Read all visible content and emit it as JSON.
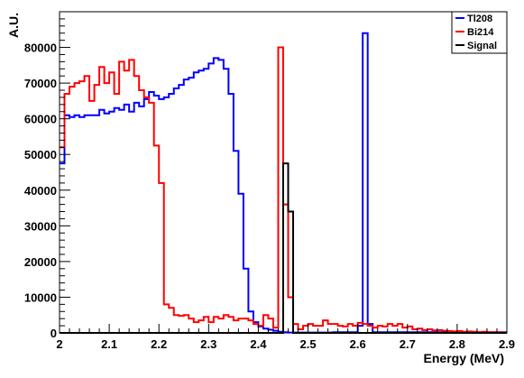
{
  "chart_data": {
    "type": "line",
    "xlabel": "Energy (MeV)",
    "ylabel": "A.U.",
    "xlim": [
      2.0,
      2.9
    ],
    "ylim": [
      0,
      90000
    ],
    "x_ticks": [
      "2",
      "2.1",
      "2.2",
      "2.3",
      "2.4",
      "2.5",
      "2.6",
      "2.7",
      "2.8",
      "2.9"
    ],
    "y_ticks": [
      "0",
      "10000",
      "20000",
      "30000",
      "40000",
      "50000",
      "60000",
      "70000",
      "80000"
    ],
    "legend_position": "top-right",
    "grid": false,
    "bin_edges_start": 2.0,
    "bin_width": 0.01,
    "series": [
      {
        "name": "Tl208",
        "color": "#0000ff",
        "values": [
          47500,
          61000,
          60500,
          61000,
          60500,
          61000,
          61000,
          61000,
          62500,
          61500,
          62000,
          63000,
          62500,
          64000,
          62000,
          64500,
          63500,
          65500,
          67500,
          66500,
          65500,
          66000,
          67000,
          68500,
          69500,
          71000,
          71500,
          73000,
          73500,
          74000,
          75500,
          77000,
          76500,
          74000,
          67000,
          51000,
          39000,
          18000,
          6000,
          3000,
          1800,
          1200,
          900,
          600,
          300,
          200,
          100,
          100,
          100,
          100,
          100,
          100,
          100,
          100,
          100,
          200,
          200,
          200,
          200,
          200,
          200,
          200,
          200,
          200,
          200,
          200,
          200,
          200,
          200,
          200,
          200,
          200,
          200,
          200,
          200,
          200,
          200,
          200,
          200,
          200,
          200,
          200,
          200,
          200,
          200,
          200,
          200,
          200,
          200,
          200,
          200,
          200,
          200,
          200,
          200,
          200,
          200,
          200,
          200,
          200
        ]
      },
      {
        "name": "Bi214",
        "color": "#ff0000",
        "values": [
          52000,
          67000,
          69000,
          70000,
          70500,
          72000,
          65000,
          69500,
          74500,
          70000,
          73000,
          67000,
          76000,
          73500,
          76500,
          72000,
          68000,
          66000,
          64500,
          52500,
          42000,
          8000,
          7000,
          5000,
          4800,
          5000,
          4000,
          3000,
          3500,
          4500,
          3000,
          4500,
          4000,
          5000,
          4500,
          3500,
          4000,
          4000,
          3500,
          2500,
          2000,
          5000,
          4000,
          1500,
          80000,
          36000,
          10000,
          2500,
          1000,
          2000,
          2500,
          2000,
          2000,
          3500,
          2500,
          2500,
          2000,
          1800,
          2500,
          2000,
          2800,
          2500,
          2000,
          1500,
          2000,
          1800,
          2500,
          2000,
          2500,
          1500,
          1800,
          1000,
          1200,
          800,
          1000,
          700,
          800,
          600,
          500,
          400,
          500,
          300,
          400,
          300,
          200,
          300,
          200,
          200,
          200,
          100
        ]
      },
      {
        "name": "Signal",
        "color": "#000000",
        "values": [
          0,
          0,
          0,
          0,
          0,
          0,
          0,
          0,
          0,
          0,
          0,
          0,
          0,
          0,
          0,
          0,
          0,
          0,
          0,
          0,
          0,
          0,
          0,
          0,
          0,
          0,
          0,
          0,
          0,
          0,
          0,
          0,
          0,
          0,
          0,
          0,
          0,
          0,
          0,
          0,
          0,
          0,
          0,
          0,
          0,
          47500,
          34000,
          0,
          0,
          0,
          0,
          0,
          0,
          0,
          0,
          0,
          0,
          0,
          0,
          0,
          0,
          0,
          0,
          0,
          0,
          0,
          0,
          0,
          0,
          0,
          0,
          0,
          0,
          0,
          0,
          0,
          0,
          0,
          0,
          0,
          0,
          0,
          0,
          0,
          0,
          0,
          0,
          0,
          0,
          0
        ]
      }
    ],
    "extra_peaks": {
      "Tl208": [
        [
          2.6,
          2000
        ],
        [
          2.61,
          84000
        ],
        [
          2.62,
          2500
        ]
      ]
    }
  }
}
